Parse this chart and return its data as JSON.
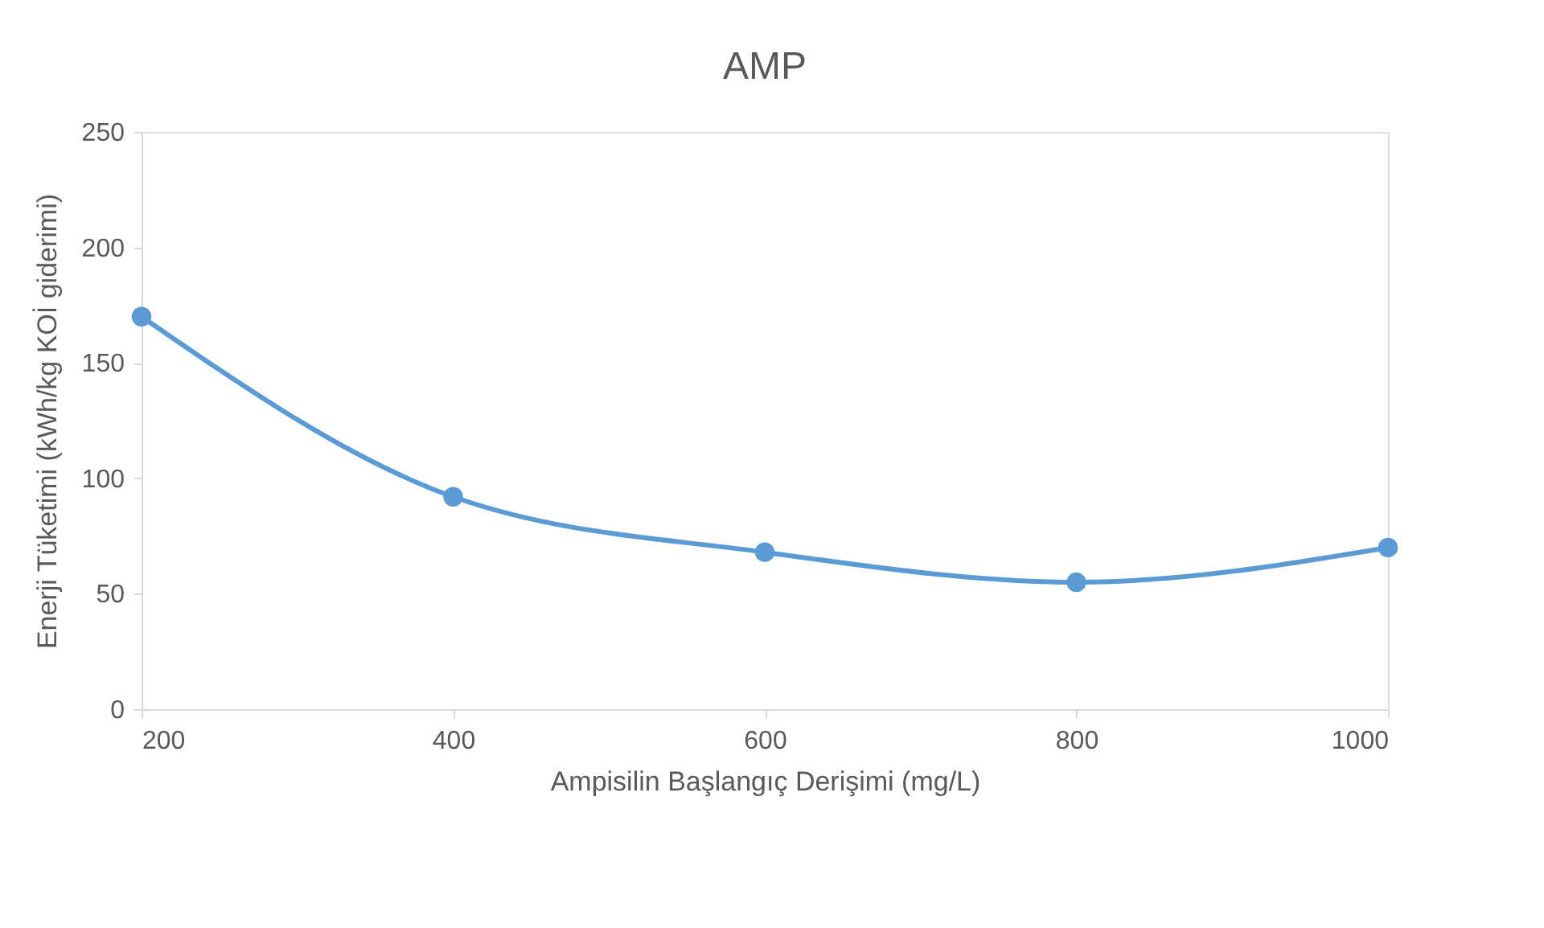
{
  "chart_data": {
    "type": "line",
    "title": "AMP",
    "xlabel": "Ampisilin Başlangıç Derişimi (mg/L)",
    "ylabel": "Enerji Tüketimi (kWh/kg KOİ giderimi)",
    "x": [
      200,
      400,
      600,
      800,
      1000
    ],
    "series": [
      {
        "color": "#5b9bd5",
        "values": [
          170,
          92,
          68,
          55,
          70
        ]
      }
    ],
    "xlim": [
      200,
      1000
    ],
    "xticks": [
      200,
      400,
      600,
      800,
      1000
    ],
    "ylim": [
      0,
      250
    ],
    "yticks": [
      0,
      50,
      100,
      150,
      200,
      250
    ],
    "grid": false,
    "marker": "circle",
    "line_style": "solid"
  }
}
